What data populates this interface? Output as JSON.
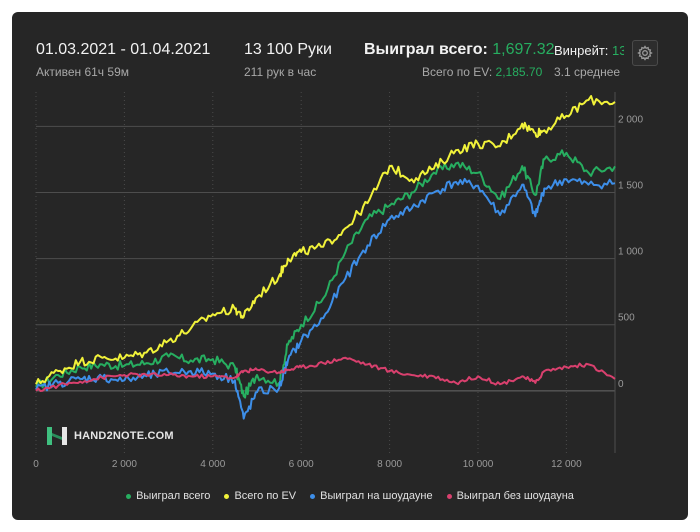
{
  "header": {
    "date_range": "01.03.2021 - 01.04.2021",
    "active_time": "Активен 61ч 59м",
    "hands": "13 100 Руки",
    "hands_per_hour": "211 рук в час",
    "won_total_label": "Выиграл всего:",
    "won_total_value": "1,697.32",
    "ev_label": "Всего по EV:",
    "ev_value": "2,185.70",
    "winrate_label": "Винрейт:",
    "winrate_value": "13",
    "winrate_sub": "3.1 среднее"
  },
  "logo_text": "HAND2NOTE.COM",
  "colors": {
    "background": "#262626",
    "green": "#27ae60",
    "yellow": "#f1f23a",
    "blue": "#3d8ee8",
    "pink": "#d9406e",
    "grid": "#4a4a4a"
  },
  "chart_data": {
    "type": "line",
    "xlabel": "",
    "ylabel": "",
    "xlim": [
      0,
      13100
    ],
    "ylim": [
      -470,
      2260
    ],
    "x_ticks": [
      0,
      2000,
      4000,
      6000,
      8000,
      10000,
      12000
    ],
    "x_tick_labels": [
      "0",
      "2 000",
      "4 000",
      "6 000",
      "8 000",
      "10 000",
      "12 000"
    ],
    "y_ticks": [
      0,
      500,
      1000,
      1500,
      2000
    ],
    "y_tick_labels": [
      "0",
      "500",
      "1 000",
      "1 500",
      "2 000"
    ],
    "grid": true,
    "legend_position": "bottom",
    "x": [
      0,
      500,
      1000,
      1500,
      2000,
      2500,
      3000,
      3500,
      4000,
      4500,
      4700,
      5000,
      5500,
      5700,
      6000,
      6500,
      7000,
      7500,
      8000,
      8500,
      9000,
      9500,
      10000,
      10500,
      11000,
      11300,
      11500,
      12000,
      12500,
      13100
    ],
    "series": [
      {
        "name": "Выиграл всего",
        "color": "#27ae60",
        "values": [
          30,
          120,
          180,
          200,
          190,
          210,
          260,
          230,
          240,
          180,
          -40,
          120,
          60,
          350,
          500,
          700,
          1050,
          1300,
          1400,
          1500,
          1650,
          1720,
          1650,
          1450,
          1700,
          1480,
          1750,
          1800,
          1650,
          1697
        ]
      },
      {
        "name": "Всего по EV",
        "color": "#f1f23a",
        "values": [
          50,
          150,
          220,
          250,
          250,
          290,
          380,
          470,
          580,
          620,
          560,
          710,
          870,
          1000,
          1050,
          1090,
          1230,
          1420,
          1700,
          1600,
          1680,
          1820,
          1870,
          1850,
          2020,
          1950,
          1970,
          2080,
          2200,
          2185
        ]
      },
      {
        "name": "Выиграл на шоудауне",
        "color": "#3d8ee8",
        "values": [
          10,
          60,
          90,
          100,
          80,
          110,
          140,
          150,
          130,
          80,
          -210,
          -10,
          20,
          230,
          380,
          550,
          850,
          1100,
          1300,
          1380,
          1500,
          1580,
          1550,
          1330,
          1560,
          1320,
          1530,
          1600,
          1560,
          1570
        ]
      },
      {
        "name": "Выиграл без шоудауна",
        "color": "#d9406e",
        "values": [
          0,
          40,
          70,
          100,
          120,
          120,
          120,
          110,
          110,
          100,
          150,
          160,
          140,
          160,
          180,
          210,
          250,
          200,
          150,
          120,
          110,
          60,
          110,
          50,
          110,
          60,
          150,
          180,
          200,
          90
        ]
      }
    ]
  }
}
